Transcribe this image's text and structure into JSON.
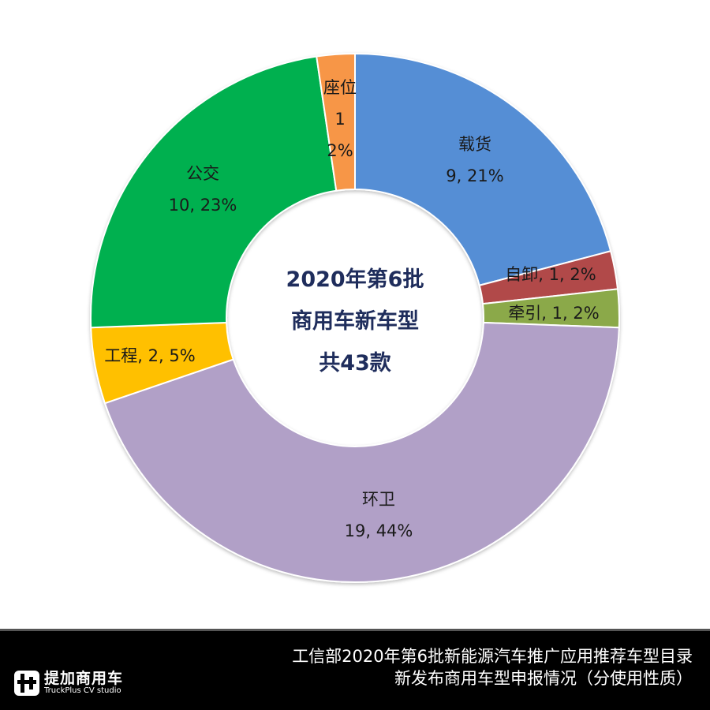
{
  "chart_data": {
    "type": "pie",
    "variant": "donut",
    "title": "工信部2020年第6批新能源汽车推广应用推荐车型目录新发布商用车型申报情况（分使用性质）",
    "center_label": [
      "2020年第6批",
      "商用车新车型",
      "共43款"
    ],
    "total": 43,
    "categories": [
      "载货",
      "自卸",
      "牵引",
      "环卫",
      "工程",
      "公交",
      "座位"
    ],
    "values": [
      9,
      1,
      1,
      19,
      2,
      10,
      1
    ],
    "percents": [
      21,
      2,
      2,
      44,
      5,
      23,
      2
    ],
    "colors": [
      "#558ED5",
      "#B14A48",
      "#8BA94A",
      "#B1A0C7",
      "#FFC000",
      "#00B050",
      "#F79646"
    ],
    "labels": [
      "载货\n9, 21%",
      "自卸, 1, 2%",
      "牵引, 1, 2%",
      "环卫\n19, 44%",
      "工程, 2, 5%",
      "公交\n10, 23%",
      "座位\n1\n2%"
    ],
    "legend": "none",
    "start_angle": "12 o'clock, clockwise"
  },
  "center": {
    "line1": "2020年第6批",
    "line2": "商用车新车型",
    "line3": "共43款"
  },
  "footer": {
    "logo_cn": "提加商用车",
    "logo_en": "TruckPlus CV studio",
    "title_line1": "工信部2020年第6批新能源汽车推广应用推荐车型目录",
    "title_line2": "新发布商用车型申报情况（分使用性质）"
  }
}
